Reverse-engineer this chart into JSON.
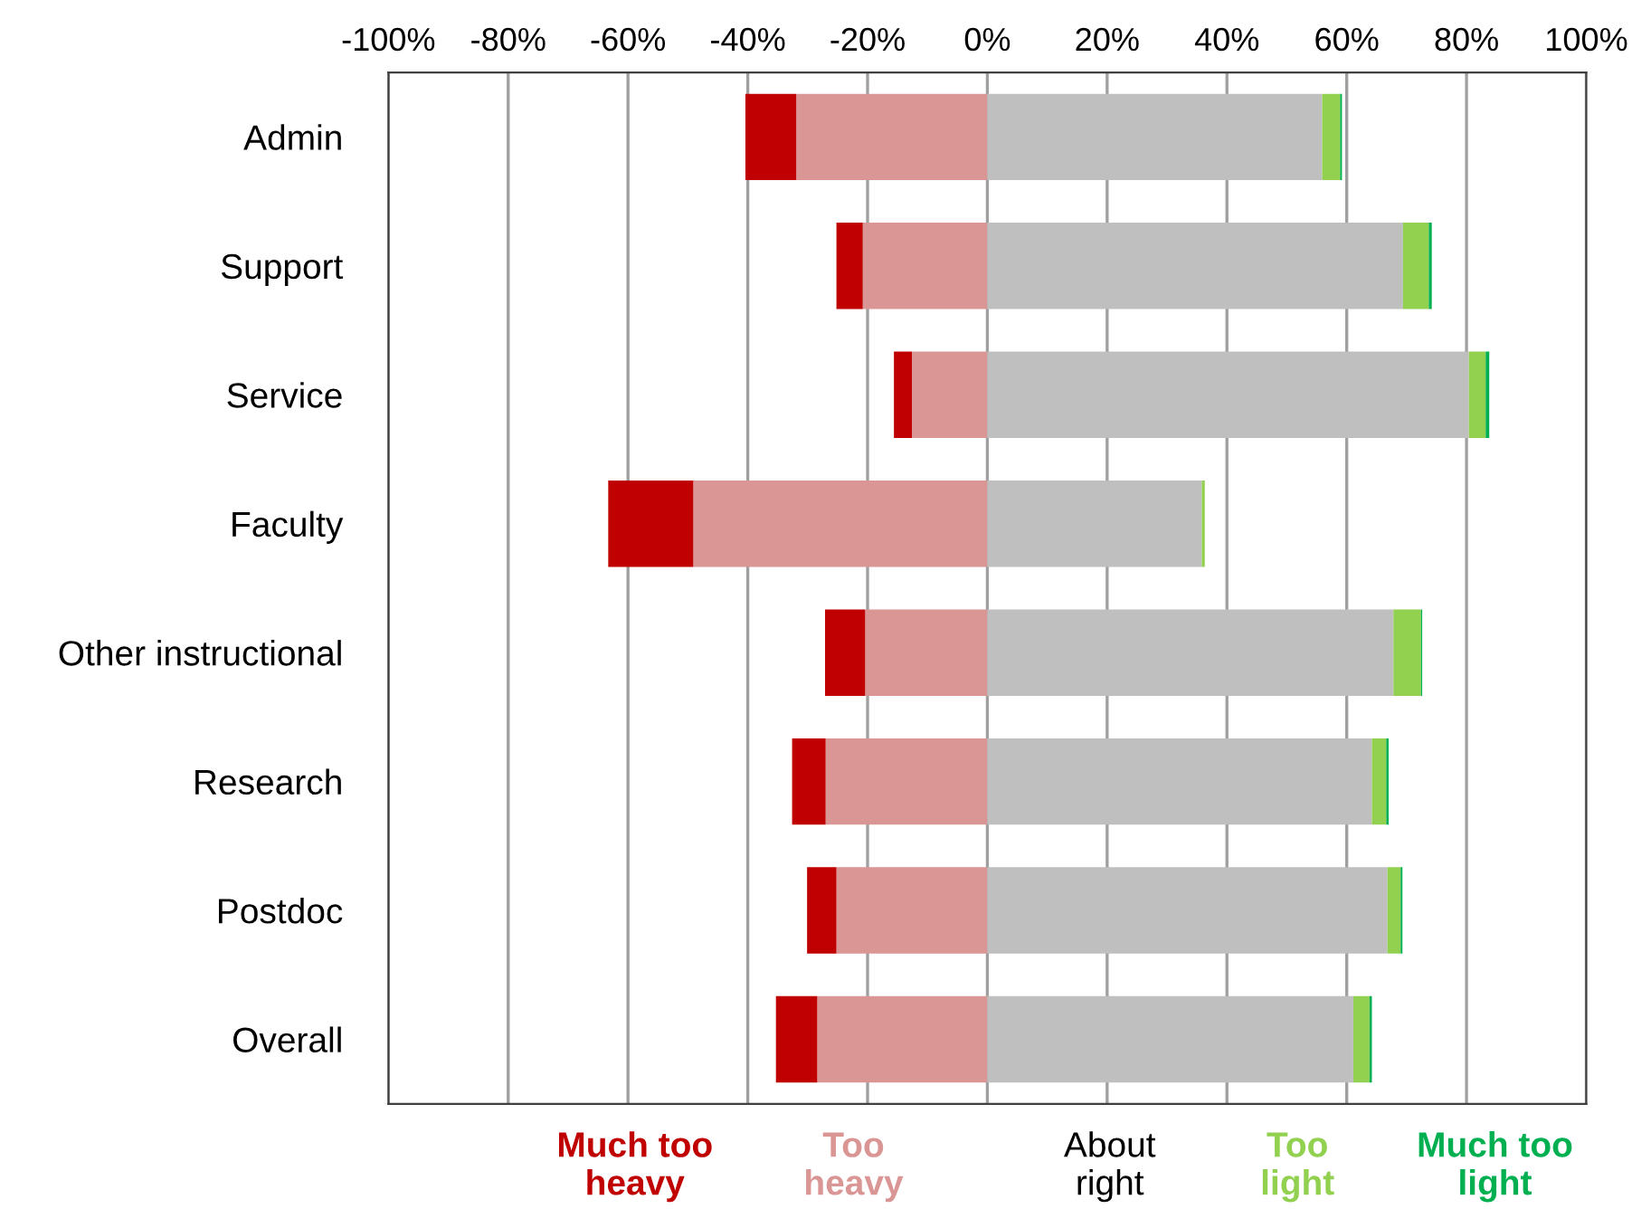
{
  "chart_data": {
    "type": "bar",
    "orientation": "horizontal",
    "stacked": true,
    "categories": [
      "Admin",
      "Support",
      "Service",
      "Faculty",
      "Other instructional",
      "Research",
      "Postdoc",
      "Overall"
    ],
    "series": [
      {
        "name": "Too\nheavy",
        "color": "#da9694",
        "values": [
          -31.9,
          -20.8,
          -12.6,
          -49.1,
          -20.4,
          -27.0,
          -25.2,
          -28.4
        ]
      },
      {
        "name": "Much too\nheavy",
        "color": "#c00000",
        "values": [
          -8.5,
          -4.4,
          -3.0,
          -14.2,
          -6.7,
          -5.6,
          -4.9,
          -6.9
        ]
      },
      {
        "name": "About\nright",
        "color": "#bfbfbf",
        "values": [
          55.9,
          69.4,
          80.4,
          35.8,
          67.8,
          64.2,
          66.8,
          61.1
        ]
      },
      {
        "name": "Too\nlight",
        "color": "#92d050",
        "values": [
          3.0,
          4.3,
          2.8,
          0.5,
          4.6,
          2.4,
          2.2,
          2.7
        ]
      },
      {
        "name": "Much too\nlight",
        "color": "#00b050",
        "values": [
          0.3,
          0.5,
          0.6,
          0.0,
          0.2,
          0.4,
          0.3,
          0.4
        ]
      }
    ],
    "xlim": [
      -100,
      100
    ],
    "xticks": [
      {
        "value": -100,
        "label": "-100%"
      },
      {
        "value": -80,
        "label": "-80%"
      },
      {
        "value": -60,
        "label": "-60%"
      },
      {
        "value": -40,
        "label": "-40%"
      },
      {
        "value": -20,
        "label": "-20%"
      },
      {
        "value": 0,
        "label": "0%"
      },
      {
        "value": 20,
        "label": "20%"
      },
      {
        "value": 40,
        "label": "40%"
      },
      {
        "value": 60,
        "label": "60%"
      },
      {
        "value": 80,
        "label": "80%"
      },
      {
        "value": 100,
        "label": "100%"
      }
    ],
    "grid": "x",
    "legend": "bottom"
  }
}
